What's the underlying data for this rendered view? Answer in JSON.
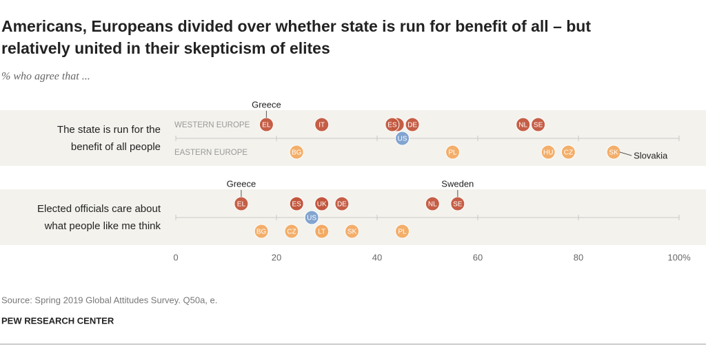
{
  "chart_data": {
    "type": "dot",
    "title": "Americans, Europeans divided over whether state is run for benefit of all – but relatively united in their skepticism of elites",
    "subtitle": "% who agree that ...",
    "xlim": [
      0,
      100
    ],
    "xticks": [
      0,
      20,
      40,
      60,
      80,
      {
        "value": 100,
        "label": "100%"
      }
    ],
    "rows": [
      {
        "label": [
          "The state is run for the",
          "benefit of all people"
        ],
        "series": [
          {
            "name": "WESTERN EUROPE",
            "color": "#c2553d",
            "categories": [
              "EL",
              "IT",
              null,
              "ES",
              "DE",
              "NL",
              "SE"
            ],
            "values": [
              18,
              29,
              44,
              43,
              47,
              69,
              72
            ]
          },
          {
            "name": "EASTERN EUROPE",
            "color": "#f2aa63",
            "categories": [
              "BG",
              "PL",
              "HU",
              "CZ",
              "SK"
            ],
            "values": [
              24,
              55,
              74,
              78,
              87
            ]
          },
          {
            "color": "#7b9fcf",
            "categories": [
              "US"
            ],
            "values": [
              45
            ]
          }
        ],
        "annotations": [
          {
            "text": "Greece",
            "category": "EL"
          },
          {
            "text": "Slovakia",
            "category": "SK"
          }
        ]
      },
      {
        "label": [
          "Elected officials care about",
          "what people like me think"
        ],
        "series": [
          {
            "color": "#c2553d",
            "categories": [
              "EL",
              null,
              "ES",
              null,
              "UK",
              "DE",
              "NL",
              "SE"
            ],
            "values": [
              13,
              24,
              24,
              29,
              29,
              33,
              51,
              56
            ]
          },
          {
            "color": "#f2aa63",
            "categories": [
              "BG",
              "CZ",
              null,
              "LT",
              "SK",
              "PL"
            ],
            "values": [
              17,
              23,
              29,
              29,
              35,
              45
            ]
          },
          {
            "color": "#7b9fcf",
            "categories": [
              "US"
            ],
            "values": [
              27
            ]
          }
        ],
        "annotations": [
          {
            "text": "Greece",
            "category": "EL"
          },
          {
            "text": "Sweden",
            "category": "SE"
          }
        ]
      }
    ],
    "source": "Source: Spring 2019 Global Attitudes Survey. Q50a, e.",
    "credit": "PEW RESEARCH CENTER"
  }
}
